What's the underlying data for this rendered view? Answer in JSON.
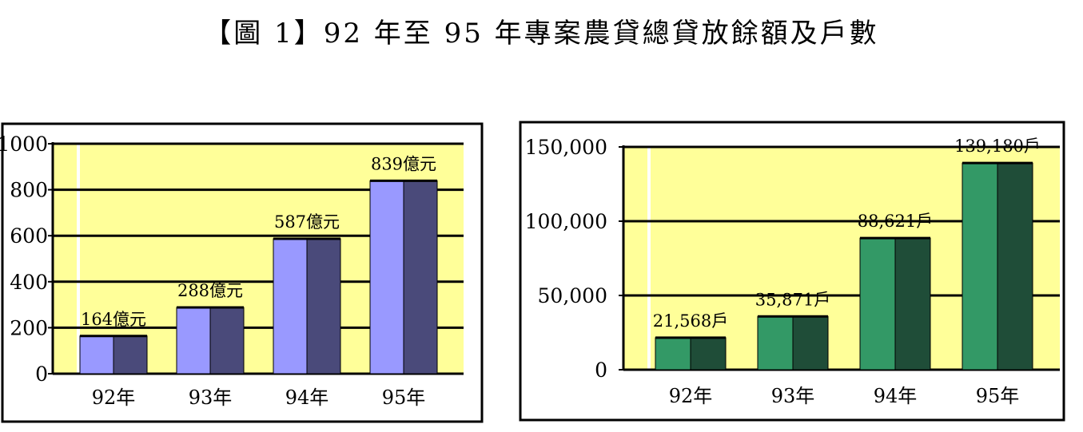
{
  "title": "【圖 1】92 年至 95 年專案農貸總貸放餘額及戶數",
  "colors": {
    "plot_bg": "#ffff99",
    "left_front": "#9999ff",
    "left_side": "#4a4a7a",
    "right_front": "#339966",
    "right_side": "#1f4d38"
  },
  "chart_data": [
    {
      "type": "bar",
      "categories": [
        "92年",
        "93年",
        "94年",
        "95年"
      ],
      "values": [
        164,
        288,
        587,
        839
      ],
      "data_labels": [
        "164億元",
        "288億元",
        "587億元",
        "839億元"
      ],
      "y_ticks": [
        "0",
        "200",
        "400",
        "600",
        "800",
        "1000"
      ],
      "ylim": [
        0,
        1000
      ],
      "grid": true
    },
    {
      "type": "bar",
      "categories": [
        "92年",
        "93年",
        "94年",
        "95年"
      ],
      "values": [
        21568,
        35871,
        88621,
        139180
      ],
      "data_labels": [
        "21,568戶",
        "35,871戶",
        "88,621戶",
        "139,180戶"
      ],
      "y_ticks": [
        "0",
        "50,000",
        "100,000",
        "150,000"
      ],
      "ylim": [
        0,
        150000
      ],
      "grid": true
    }
  ]
}
